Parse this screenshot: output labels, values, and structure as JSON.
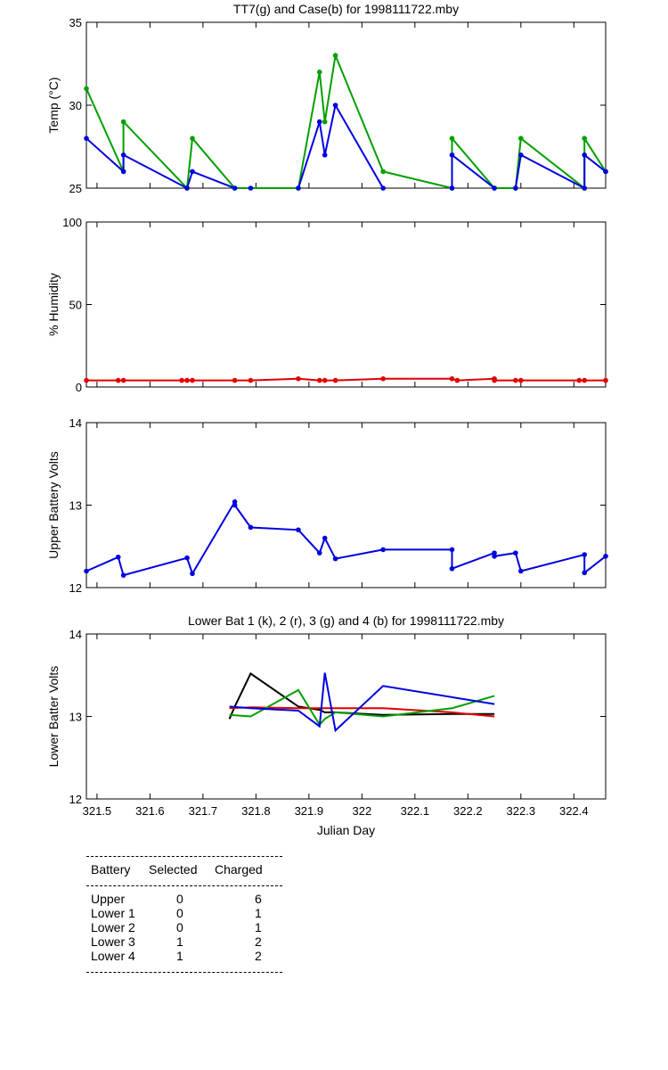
{
  "chart_data": [
    {
      "type": "line",
      "title": "TT7(g) and Case(b) for 1998111722.mby",
      "xlabel": "",
      "ylabel": "Temp  (°C)",
      "xlim": [
        321.48,
        322.46
      ],
      "ylim": [
        25,
        35
      ],
      "yticks": [
        25,
        30,
        35
      ],
      "series": [
        {
          "color": "#00a000",
          "x": [
            321.48,
            321.55,
            321.55,
            321.67,
            321.68,
            321.76,
            321.88,
            321.92,
            321.93,
            321.95,
            322.04,
            322.17,
            322.17,
            322.25,
            322.29,
            322.3,
            322.42,
            322.42,
            322.46
          ],
          "y": [
            31,
            26,
            29,
            25,
            28,
            25,
            25,
            32,
            29,
            33,
            26,
            25,
            28,
            25,
            25,
            28,
            25,
            28,
            26
          ]
        },
        {
          "color": "#0000e0",
          "x": [
            321.48,
            321.55,
            321.55,
            321.67,
            321.68,
            321.76
          ],
          "y": [
            28,
            26,
            27,
            25,
            26,
            25
          ]
        },
        {
          "color": "#0000e0",
          "x": [
            321.79
          ],
          "y": [
            25
          ]
        },
        {
          "color": "#0000e0",
          "x": [
            321.88,
            321.92,
            321.93,
            321.95,
            322.04
          ],
          "y": [
            25,
            29,
            27,
            30,
            25
          ]
        },
        {
          "color": "#0000e0",
          "x": [
            322.17,
            322.17,
            322.25
          ],
          "y": [
            25,
            27,
            25
          ]
        },
        {
          "color": "#0000e0",
          "x": [
            322.29,
            322.3,
            322.42,
            322.42,
            322.46
          ],
          "y": [
            25,
            27,
            25,
            27,
            26
          ]
        }
      ]
    },
    {
      "type": "line",
      "title": "",
      "xlabel": "",
      "ylabel": "% Humidity",
      "xlim": [
        321.48,
        322.46
      ],
      "ylim": [
        0,
        100
      ],
      "yticks": [
        0,
        50,
        100
      ],
      "series": [
        {
          "color": "#e00000",
          "x": [
            321.48,
            321.54,
            321.55,
            321.66,
            321.67,
            321.68,
            321.76,
            321.79,
            321.88,
            321.92,
            321.93,
            321.95,
            322.04,
            322.17,
            322.18,
            322.25,
            322.25,
            322.29,
            322.3,
            322.41,
            322.42,
            322.46
          ],
          "y": [
            4,
            4,
            4,
            4,
            4,
            4,
            4,
            4,
            5,
            4,
            4,
            4,
            5,
            5,
            4,
            5,
            4,
            4,
            4,
            4,
            4,
            4
          ]
        }
      ]
    },
    {
      "type": "line",
      "title": "",
      "xlabel": "",
      "ylabel": "Upper Battery Volts",
      "xlim": [
        321.48,
        322.46
      ],
      "ylim": [
        12,
        14
      ],
      "yticks": [
        12,
        13,
        14
      ],
      "series": [
        {
          "color": "#0000e0",
          "x": [
            321.48,
            321.54,
            321.55,
            321.67,
            321.68,
            321.76,
            321.76,
            321.79,
            321.88,
            321.92,
            321.93,
            321.95,
            322.04,
            322.17,
            322.17,
            322.25,
            322.25,
            322.29,
            322.3,
            322.42,
            322.42,
            322.46
          ],
          "y": [
            12.2,
            12.37,
            12.15,
            12.36,
            12.17,
            13.04,
            13.0,
            12.73,
            12.7,
            12.42,
            12.6,
            12.35,
            12.46,
            12.46,
            12.23,
            12.42,
            12.38,
            12.42,
            12.2,
            12.4,
            12.18,
            12.38
          ]
        }
      ]
    },
    {
      "type": "line",
      "title": "Lower Bat 1 (k), 2 (r), 3 (g) and 4 (b) for 1998111722.mby",
      "xlabel": "Julian Day",
      "ylabel": "Lower Batter Volts",
      "xlim": [
        321.48,
        322.46
      ],
      "ylim": [
        12,
        14
      ],
      "yticks": [
        12,
        13,
        14
      ],
      "xticks": [
        321.5,
        321.6,
        321.7,
        321.8,
        321.9,
        322,
        322.1,
        322.2,
        322.3,
        322.4
      ],
      "xticklabels": [
        "321.5",
        "321.6",
        "321.7",
        "321.8",
        "321.9",
        "322",
        "322.1",
        "322.2",
        "322.3",
        "322.4"
      ],
      "series": [
        {
          "color": "#000000",
          "x": [
            321.75,
            321.76,
            321.79,
            321.88,
            321.92,
            321.93,
            321.95,
            322.04,
            322.17,
            322.25
          ],
          "y": [
            12.97,
            13.12,
            13.52,
            13.12,
            13.08,
            13.05,
            13.05,
            13.02,
            13.03,
            13.03
          ]
        },
        {
          "color": "#e00000",
          "x": [
            321.75,
            321.79,
            321.88,
            321.92,
            321.95,
            322.04,
            322.17,
            322.25
          ],
          "y": [
            13.1,
            13.11,
            13.1,
            13.1,
            13.1,
            13.1,
            13.05,
            13.0
          ]
        },
        {
          "color": "#00a000",
          "x": [
            321.75,
            321.79,
            321.88,
            321.92,
            321.93,
            321.95,
            322.04,
            322.17,
            322.25
          ],
          "y": [
            13.02,
            13.0,
            13.32,
            12.9,
            12.97,
            13.05,
            13.0,
            13.1,
            13.25
          ]
        },
        {
          "color": "#0000e0",
          "x": [
            321.75,
            321.79,
            321.88,
            321.92,
            321.93,
            321.95,
            322.04,
            322.25
          ],
          "y": [
            13.12,
            13.1,
            13.07,
            12.88,
            13.53,
            12.83,
            13.37,
            13.15
          ]
        }
      ]
    }
  ],
  "table": {
    "headers": [
      "Battery",
      "Selected",
      "Charged"
    ],
    "rows": [
      [
        "Upper",
        "0",
        "6"
      ],
      [
        "Lower 1",
        "0",
        "1"
      ],
      [
        "Lower 2",
        "0",
        "1"
      ],
      [
        "Lower 3",
        "1",
        "2"
      ],
      [
        "Lower 4",
        "1",
        "2"
      ]
    ]
  }
}
